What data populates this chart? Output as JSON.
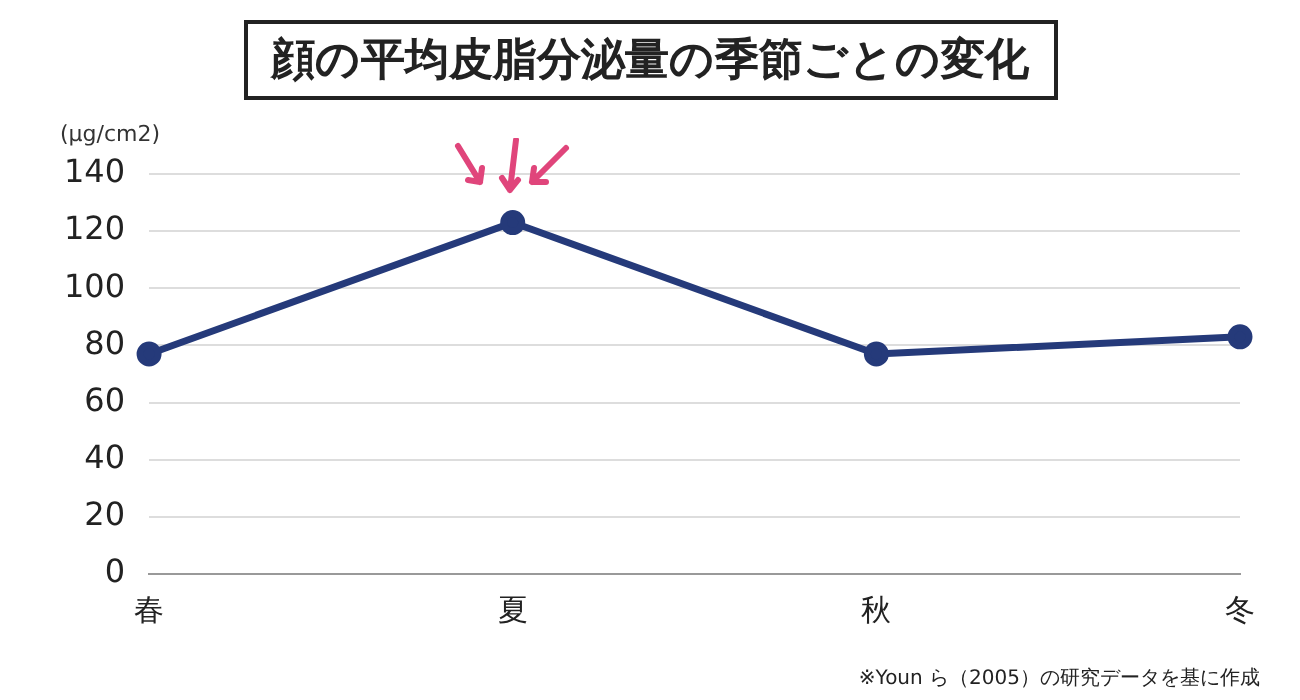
{
  "chart_data": {
    "type": "line",
    "title": "顔の平均皮脂分泌量の季節ごとの変化",
    "ylabel": "(μg/cm2)",
    "categories": [
      "春",
      "夏",
      "秋",
      "冬"
    ],
    "series": [
      {
        "color": "#253a7a",
        "values": [
          77,
          123,
          77,
          83
        ]
      }
    ],
    "ylim": [
      0,
      140
    ],
    "yticks": [
      0,
      20,
      40,
      60,
      80,
      100,
      120,
      140
    ],
    "grid": "y",
    "legend": false,
    "marker": "circle",
    "line_style": "solid",
    "annotations": [
      "※Youn ら（2005）の研究データを基に作成"
    ]
  }
}
